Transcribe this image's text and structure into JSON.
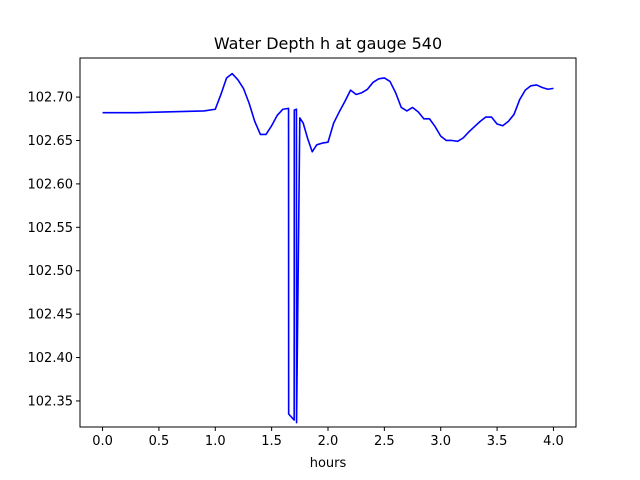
{
  "chart_data": {
    "type": "line",
    "title": "Water Depth h at gauge 540",
    "xlabel": "hours",
    "ylabel": "",
    "xlim": [
      -0.2,
      4.2
    ],
    "ylim": [
      102.32,
      102.745
    ],
    "xticks": [
      0.0,
      0.5,
      1.0,
      1.5,
      2.0,
      2.5,
      3.0,
      3.5,
      4.0
    ],
    "xtick_labels": [
      "0.0",
      "0.5",
      "1.0",
      "1.5",
      "2.0",
      "2.5",
      "3.0",
      "3.5",
      "4.0"
    ],
    "yticks": [
      102.35,
      102.4,
      102.45,
      102.5,
      102.55,
      102.6,
      102.65,
      102.7
    ],
    "ytick_labels": [
      "102.35",
      "102.40",
      "102.45",
      "102.50",
      "102.55",
      "102.60",
      "102.65",
      "102.70"
    ],
    "grid": false,
    "series": [
      {
        "color": "#0000ff",
        "x": [
          0.0,
          0.3,
          0.6,
          0.9,
          1.0,
          1.05,
          1.1,
          1.15,
          1.2,
          1.25,
          1.3,
          1.35,
          1.4,
          1.45,
          1.5,
          1.55,
          1.6,
          1.65,
          1.651,
          1.7,
          1.701,
          1.72,
          1.721,
          1.75,
          1.78,
          1.82,
          1.86,
          1.9,
          1.95,
          2.0,
          2.05,
          2.1,
          2.15,
          2.2,
          2.25,
          2.3,
          2.35,
          2.4,
          2.45,
          2.5,
          2.55,
          2.6,
          2.65,
          2.7,
          2.75,
          2.8,
          2.85,
          2.9,
          2.95,
          3.0,
          3.05,
          3.1,
          3.15,
          3.2,
          3.25,
          3.3,
          3.35,
          3.4,
          3.45,
          3.5,
          3.55,
          3.6,
          3.65,
          3.7,
          3.75,
          3.8,
          3.85,
          3.9,
          3.95,
          4.0
        ],
        "y": [
          102.682,
          102.682,
          102.683,
          102.684,
          102.686,
          102.703,
          102.722,
          102.727,
          102.72,
          102.71,
          102.693,
          102.672,
          102.657,
          102.657,
          102.667,
          102.679,
          102.686,
          102.687,
          102.335,
          102.328,
          102.685,
          102.686,
          102.325,
          102.676,
          102.67,
          102.652,
          102.637,
          102.645,
          102.647,
          102.648,
          102.67,
          102.683,
          102.695,
          102.708,
          102.703,
          102.705,
          102.709,
          102.717,
          102.721,
          102.722,
          102.718,
          102.705,
          102.688,
          102.684,
          102.688,
          102.683,
          102.675,
          102.675,
          102.666,
          102.655,
          102.65,
          102.65,
          102.649,
          102.653,
          102.66,
          102.666,
          102.672,
          102.677,
          102.677,
          102.669,
          102.667,
          102.672,
          102.68,
          102.697,
          102.708,
          102.713,
          102.714,
          102.711,
          102.709,
          102.71
        ]
      }
    ]
  }
}
